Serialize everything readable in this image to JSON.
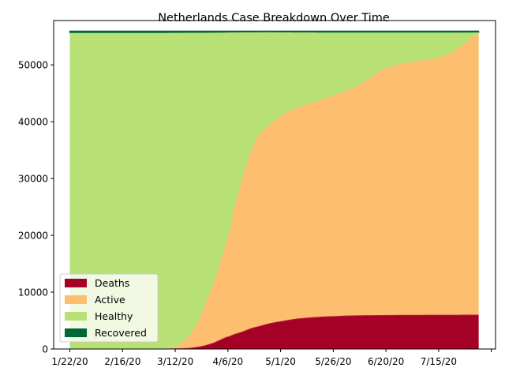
{
  "chart_data": {
    "type": "area",
    "stacked": true,
    "title": "Netherlands Case Breakdown Over Time",
    "xlabel": "",
    "ylabel": "",
    "x_tick_labels": [
      "1/22/20",
      "2/16/20",
      "3/12/20",
      "4/6/20",
      "5/1/20",
      "5/26/20",
      "6/20/20",
      "7/15/20",
      ""
    ],
    "x_tick_days": [
      0,
      25,
      50,
      75,
      100,
      125,
      150,
      175,
      200
    ],
    "x_range_days": [
      -7.7,
      202
    ],
    "y_ticks": [
      0,
      10000,
      20000,
      30000,
      40000,
      50000
    ],
    "ylim": [
      0,
      57800
    ],
    "grid": false,
    "legend_position": "lower-left",
    "series": [
      {
        "name": "Deaths",
        "color": "#a50026",
        "x_days": [
          0,
          45,
          48,
          50,
          52,
          54,
          56,
          58,
          60,
          62,
          64,
          66,
          68,
          70,
          72,
          74,
          76,
          78,
          80,
          82,
          84,
          86,
          88,
          90,
          92,
          94,
          96,
          98,
          100,
          104,
          108,
          112,
          116,
          120,
          125,
          130,
          135,
          140,
          145,
          150,
          160,
          170,
          180,
          190,
          194
        ],
        "values": [
          0,
          0,
          10,
          20,
          40,
          70,
          110,
          180,
          280,
          410,
          580,
          790,
          1010,
          1340,
          1680,
          2020,
          2240,
          2550,
          2790,
          3010,
          3320,
          3600,
          3800,
          3980,
          4200,
          4400,
          4560,
          4700,
          4820,
          5080,
          5300,
          5430,
          5560,
          5640,
          5720,
          5800,
          5850,
          5880,
          5900,
          5920,
          5940,
          5950,
          5960,
          5970,
          5980
        ]
      },
      {
        "name": "Active",
        "color": "#fdbe70",
        "x_days": [
          0,
          38,
          40,
          42,
          44,
          46,
          48,
          50,
          52,
          54,
          56,
          58,
          60,
          62,
          64,
          66,
          68,
          70,
          72,
          74,
          76,
          78,
          80,
          82,
          84,
          86,
          88,
          90,
          92,
          94,
          96,
          98,
          100,
          104,
          108,
          112,
          116,
          120,
          125,
          130,
          135,
          140,
          145,
          150,
          155,
          160,
          165,
          170,
          175,
          180,
          185,
          190,
          194
        ],
        "values": [
          0,
          0,
          10,
          20,
          40,
          70,
          170,
          390,
          780,
          1310,
          1890,
          2770,
          3830,
          5500,
          7090,
          8610,
          10410,
          12250,
          14530,
          16290,
          18770,
          22020,
          24790,
          27360,
          29280,
          31200,
          32900,
          33700,
          34400,
          34800,
          35300,
          35700,
          36100,
          36800,
          37200,
          37600,
          37900,
          38300,
          38900,
          39500,
          40200,
          41200,
          42500,
          43600,
          44000,
          44400,
          44700,
          45000,
          45300,
          46000,
          47100,
          48600,
          49600
        ]
      },
      {
        "name": "Healthy",
        "color": "#b7e075",
        "total_population_line": 55950,
        "top_values": [
          55620,
          55620,
          55620,
          55620,
          55620,
          55620,
          55620,
          55640,
          55650,
          55660,
          55700,
          55720,
          55730,
          55720,
          55700,
          55690,
          55680,
          55680,
          55680,
          55680,
          55680,
          55680,
          55680,
          55680,
          55680,
          55700
        ]
      },
      {
        "name": "Recovered",
        "color": "#006837",
        "values_note_visible_as": "thin band at top"
      }
    ]
  }
}
